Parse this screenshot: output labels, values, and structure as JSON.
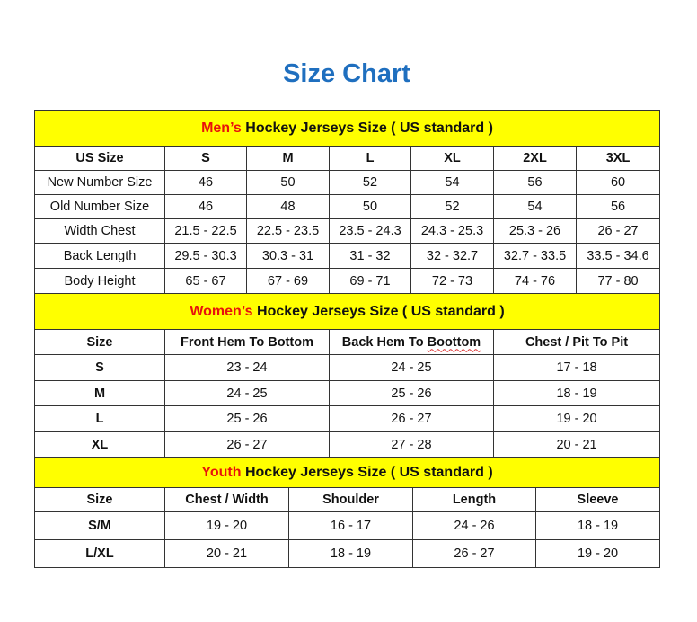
{
  "title": "Size Chart",
  "colors": {
    "title": "#1f6fbf",
    "band": "#ffff00",
    "accent": "#e8120c"
  },
  "mens": {
    "band_accent": "Men’s",
    "band_rest": " Hockey Jerseys Size ( US standard )",
    "headers": [
      "US Size",
      "S",
      "M",
      "L",
      "XL",
      "2XL",
      "3XL"
    ],
    "rows": [
      [
        "New Number Size",
        "46",
        "50",
        "52",
        "54",
        "56",
        "60"
      ],
      [
        "Old Number Size",
        "46",
        "48",
        "50",
        "52",
        "54",
        "56"
      ],
      [
        "Width Chest",
        "21.5 - 22.5",
        "22.5 - 23.5",
        "23.5 - 24.3",
        "24.3 - 25.3",
        "25.3 - 26",
        "26 - 27"
      ],
      [
        "Back Length",
        "29.5 - 30.3",
        "30.3 - 31",
        "31 - 32",
        "32 - 32.7",
        "32.7 - 33.5",
        "33.5 - 34.6"
      ],
      [
        "Body Height",
        "65 - 67",
        "67 - 69",
        "69 - 71",
        "72 - 73",
        "74 - 76",
        "77 - 80"
      ]
    ]
  },
  "womens": {
    "band_accent": "Women’s",
    "band_rest": " Hockey Jerseys Size ( US standard )",
    "headers": [
      "Size",
      "Front Hem To Bottom",
      "Back Hem To Boottom",
      "Chest / Pit To Pit"
    ],
    "rows": [
      [
        "S",
        "23 - 24",
        "24 - 25",
        "17 - 18"
      ],
      [
        "M",
        "24 - 25",
        "25 - 26",
        "18 - 19"
      ],
      [
        "L",
        "25 - 26",
        "26 - 27",
        "19 - 20"
      ],
      [
        "XL",
        "26 - 27",
        "27 - 28",
        "20 - 21"
      ]
    ]
  },
  "youth": {
    "band_accent": "Youth",
    "band_rest": " Hockey Jerseys Size ( US standard )",
    "headers": [
      "Size",
      "Chest / Width",
      "Shoulder",
      "Length",
      "Sleeve"
    ],
    "rows": [
      [
        "S/M",
        "19 - 20",
        "16 - 17",
        "24 - 26",
        "18 - 19"
      ],
      [
        "L/XL",
        "20 - 21",
        "18 - 19",
        "26 - 27",
        "19 - 20"
      ]
    ]
  }
}
